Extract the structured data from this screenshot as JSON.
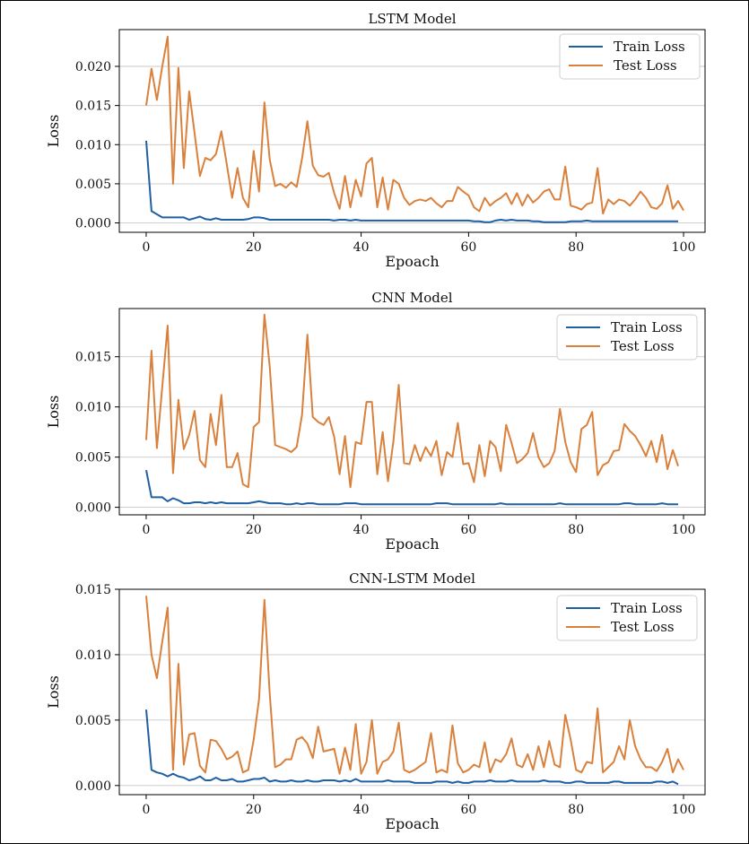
{
  "chart_data": [
    {
      "type": "line",
      "title": "LSTM Model",
      "xlabel": "Epoach",
      "ylabel": "Loss",
      "xlim": [
        -5,
        104
      ],
      "ylim": [
        -0.0012,
        0.0247
      ],
      "xticks": [
        "0",
        "20",
        "40",
        "60",
        "80",
        "100"
      ],
      "yticks": [
        "0.000",
        "0.005",
        "0.010",
        "0.015",
        "0.020"
      ],
      "grid": "horizontal",
      "legend": "top-right",
      "legend_entries": [
        "Train Loss",
        "Test Loss"
      ],
      "series": [
        {
          "name": "Train Loss",
          "color": "#1f5fa3",
          "values": [
            0.0105,
            0.0015,
            0.0011,
            0.0007,
            0.0007,
            0.0007,
            0.0007,
            0.0007,
            0.0004,
            0.0006,
            0.0008,
            0.0005,
            0.0004,
            0.0006,
            0.0004,
            0.0004,
            0.0004,
            0.0004,
            0.0004,
            0.0005,
            0.0007,
            0.0007,
            0.0006,
            0.0004,
            0.0004,
            0.0004,
            0.0004,
            0.0004,
            0.0004,
            0.0004,
            0.0004,
            0.0004,
            0.0004,
            0.0004,
            0.0004,
            0.0003,
            0.0004,
            0.0004,
            0.0003,
            0.0004,
            0.0003,
            0.0003,
            0.0003,
            0.0003,
            0.0003,
            0.0003,
            0.0003,
            0.0003,
            0.0003,
            0.0003,
            0.0003,
            0.0003,
            0.0003,
            0.0003,
            0.0003,
            0.0003,
            0.0003,
            0.0003,
            0.0003,
            0.0003,
            0.0003,
            0.0002,
            0.0002,
            0.0001,
            0.0001,
            0.0003,
            0.0004,
            0.0003,
            0.0004,
            0.0003,
            0.0003,
            0.0003,
            0.0002,
            0.0002,
            0.0001,
            0.0001,
            0.0001,
            0.0001,
            0.0001,
            0.0002,
            0.0002,
            0.0002,
            0.0003,
            0.0002,
            0.0002,
            0.0002,
            0.0002,
            0.0002,
            0.0002,
            0.0002,
            0.0002,
            0.0002,
            0.0002,
            0.0002,
            0.0002,
            0.0002,
            0.0002,
            0.0002,
            0.0002,
            0.0002
          ]
        },
        {
          "name": "Test Loss",
          "color": "#d9813c",
          "values": [
            0.015,
            0.0197,
            0.0157,
            0.02,
            0.0238,
            0.005,
            0.0198,
            0.007,
            0.0168,
            0.0115,
            0.006,
            0.0083,
            0.008,
            0.0088,
            0.0117,
            0.0075,
            0.0032,
            0.007,
            0.0032,
            0.002,
            0.0092,
            0.004,
            0.0154,
            0.0081,
            0.0047,
            0.005,
            0.0045,
            0.0052,
            0.0046,
            0.0082,
            0.013,
            0.0073,
            0.0061,
            0.0059,
            0.0064,
            0.0038,
            0.0018,
            0.006,
            0.002,
            0.0055,
            0.0034,
            0.0076,
            0.0083,
            0.002,
            0.0058,
            0.0017,
            0.0055,
            0.005,
            0.0032,
            0.0023,
            0.0028,
            0.003,
            0.0028,
            0.0032,
            0.0025,
            0.002,
            0.0028,
            0.0028,
            0.0046,
            0.004,
            0.0035,
            0.002,
            0.0015,
            0.0032,
            0.0022,
            0.0028,
            0.0032,
            0.0038,
            0.0024,
            0.0038,
            0.0022,
            0.0036,
            0.0026,
            0.0032,
            0.004,
            0.0043,
            0.003,
            0.003,
            0.0072,
            0.0022,
            0.002,
            0.0017,
            0.0024,
            0.0026,
            0.007,
            0.0012,
            0.003,
            0.0024,
            0.003,
            0.0028,
            0.0022,
            0.003,
            0.004,
            0.0032,
            0.002,
            0.0018,
            0.0025,
            0.0048,
            0.0018,
            0.0028,
            0.0016
          ]
        }
      ]
    },
    {
      "type": "line",
      "title": "CNN Model",
      "xlabel": "Epoach",
      "ylabel": "Loss",
      "xlim": [
        -5,
        104
      ],
      "ylim": [
        -0.00075,
        0.0198
      ],
      "xticks": [
        "0",
        "20",
        "40",
        "60",
        "80",
        "100"
      ],
      "yticks": [
        "0.000",
        "0.005",
        "0.010",
        "0.015"
      ],
      "grid": "horizontal",
      "legend": "top-right",
      "legend_entries": [
        "Train Loss",
        "Test Loss"
      ],
      "series": [
        {
          "name": "Train Loss",
          "color": "#1f5fa3",
          "values": [
            0.0037,
            0.001,
            0.001,
            0.001,
            0.0006,
            0.0009,
            0.0007,
            0.0004,
            0.0004,
            0.0005,
            0.0005,
            0.0004,
            0.0005,
            0.0004,
            0.0005,
            0.0004,
            0.0004,
            0.0004,
            0.0004,
            0.0004,
            0.0005,
            0.0006,
            0.0005,
            0.0004,
            0.0004,
            0.0004,
            0.0003,
            0.0003,
            0.0004,
            0.0003,
            0.0004,
            0.0004,
            0.0003,
            0.0003,
            0.0003,
            0.0003,
            0.0003,
            0.0004,
            0.0004,
            0.0004,
            0.0003,
            0.0003,
            0.0003,
            0.0003,
            0.0003,
            0.0003,
            0.0003,
            0.0003,
            0.0003,
            0.0003,
            0.0003,
            0.0003,
            0.0003,
            0.0003,
            0.0004,
            0.0004,
            0.0004,
            0.0003,
            0.0003,
            0.0003,
            0.0003,
            0.0003,
            0.0003,
            0.0003,
            0.0003,
            0.0003,
            0.0004,
            0.0003,
            0.0003,
            0.0003,
            0.0003,
            0.0003,
            0.0003,
            0.0003,
            0.0003,
            0.0003,
            0.0003,
            0.0004,
            0.0003,
            0.0003,
            0.0003,
            0.0003,
            0.0003,
            0.0003,
            0.0003,
            0.0003,
            0.0003,
            0.0003,
            0.0003,
            0.0004,
            0.0004,
            0.0003,
            0.0003,
            0.0003,
            0.0003,
            0.0003,
            0.0004,
            0.0003,
            0.0003,
            0.0003
          ]
        },
        {
          "name": "Test Loss",
          "color": "#d9813c",
          "values": [
            0.0067,
            0.0156,
            0.0059,
            0.012,
            0.0181,
            0.0034,
            0.0107,
            0.0058,
            0.0072,
            0.0096,
            0.0047,
            0.004,
            0.0093,
            0.0062,
            0.0112,
            0.004,
            0.004,
            0.0054,
            0.0023,
            0.002,
            0.008,
            0.0085,
            0.0192,
            0.014,
            0.0062,
            0.006,
            0.0058,
            0.0055,
            0.006,
            0.0092,
            0.0172,
            0.009,
            0.0085,
            0.0082,
            0.009,
            0.007,
            0.0033,
            0.0071,
            0.002,
            0.0065,
            0.0063,
            0.0105,
            0.0105,
            0.0033,
            0.0075,
            0.0026,
            0.0065,
            0.0122,
            0.0044,
            0.0043,
            0.0062,
            0.0046,
            0.006,
            0.0051,
            0.0066,
            0.0032,
            0.0055,
            0.005,
            0.0084,
            0.0043,
            0.0044,
            0.0025,
            0.0062,
            0.0031,
            0.0066,
            0.006,
            0.0036,
            0.0082,
            0.0064,
            0.0044,
            0.0048,
            0.0054,
            0.0074,
            0.005,
            0.004,
            0.0044,
            0.0056,
            0.0098,
            0.0065,
            0.0045,
            0.0035,
            0.0078,
            0.0082,
            0.0095,
            0.0032,
            0.0042,
            0.0045,
            0.0056,
            0.0057,
            0.0083,
            0.0076,
            0.0071,
            0.0062,
            0.0051,
            0.0066,
            0.0045,
            0.0072,
            0.0038,
            0.0057,
            0.0041
          ]
        }
      ]
    },
    {
      "type": "line",
      "title": "CNN-LSTM Model",
      "xlabel": "Epoach",
      "ylabel": "Loss",
      "xlim": [
        -5,
        104
      ],
      "ylim": [
        -0.0007,
        0.015
      ],
      "xticks": [
        "0",
        "20",
        "40",
        "60",
        "80",
        "100"
      ],
      "yticks": [
        "0.000",
        "0.005",
        "0.010",
        "0.015"
      ],
      "grid": "horizontal",
      "legend": "top-right",
      "legend_entries": [
        "Train Loss",
        "Test Loss"
      ],
      "series": [
        {
          "name": "Train Loss",
          "color": "#1f5fa3",
          "values": [
            0.0058,
            0.0012,
            0.001,
            0.0009,
            0.0007,
            0.0009,
            0.0007,
            0.0006,
            0.0004,
            0.0005,
            0.0007,
            0.0004,
            0.0004,
            0.0006,
            0.0004,
            0.0004,
            0.0005,
            0.0003,
            0.0003,
            0.0004,
            0.0005,
            0.0005,
            0.0006,
            0.0003,
            0.0004,
            0.0003,
            0.0003,
            0.0004,
            0.0003,
            0.0003,
            0.0004,
            0.0003,
            0.0003,
            0.0004,
            0.0004,
            0.0004,
            0.0003,
            0.0004,
            0.0003,
            0.0005,
            0.0003,
            0.0003,
            0.0003,
            0.0003,
            0.0003,
            0.0004,
            0.0003,
            0.0003,
            0.0003,
            0.0003,
            0.0002,
            0.0002,
            0.0002,
            0.0002,
            0.0003,
            0.0003,
            0.0003,
            0.0002,
            0.0003,
            0.0002,
            0.0002,
            0.0003,
            0.0003,
            0.0003,
            0.0004,
            0.0003,
            0.0003,
            0.0003,
            0.0004,
            0.0003,
            0.0003,
            0.0003,
            0.0003,
            0.0003,
            0.0004,
            0.0003,
            0.0003,
            0.0003,
            0.0002,
            0.0002,
            0.0003,
            0.0003,
            0.0002,
            0.0002,
            0.0002,
            0.0002,
            0.0002,
            0.0003,
            0.0003,
            0.0002,
            0.0002,
            0.0002,
            0.0002,
            0.0002,
            0.0002,
            0.0003,
            0.0003,
            0.0002,
            0.0003,
            0.0001
          ]
        },
        {
          "name": "Test Loss",
          "color": "#d9813c",
          "values": [
            0.0145,
            0.01,
            0.0082,
            0.011,
            0.0136,
            0.0012,
            0.0093,
            0.0016,
            0.0039,
            0.004,
            0.0015,
            0.001,
            0.0035,
            0.0034,
            0.0028,
            0.002,
            0.0022,
            0.0026,
            0.001,
            0.0012,
            0.0035,
            0.0066,
            0.0142,
            0.007,
            0.0014,
            0.0016,
            0.002,
            0.002,
            0.0035,
            0.0037,
            0.0032,
            0.0021,
            0.0045,
            0.0026,
            0.0027,
            0.0028,
            0.0009,
            0.0029,
            0.0012,
            0.0047,
            0.0009,
            0.0018,
            0.005,
            0.0009,
            0.0018,
            0.002,
            0.0026,
            0.0048,
            0.0012,
            0.001,
            0.0012,
            0.0015,
            0.0018,
            0.004,
            0.001,
            0.0012,
            0.001,
            0.0046,
            0.0017,
            0.001,
            0.0012,
            0.0016,
            0.0014,
            0.0033,
            0.001,
            0.002,
            0.0018,
            0.0024,
            0.0036,
            0.0016,
            0.0014,
            0.0024,
            0.0012,
            0.003,
            0.0014,
            0.0034,
            0.0016,
            0.0014,
            0.0054,
            0.0035,
            0.0012,
            0.001,
            0.0018,
            0.0017,
            0.0059,
            0.001,
            0.0014,
            0.0018,
            0.003,
            0.002,
            0.005,
            0.003,
            0.002,
            0.0014,
            0.0014,
            0.0011,
            0.0018,
            0.0028,
            0.001,
            0.002,
            0.0012
          ]
        }
      ]
    }
  ]
}
